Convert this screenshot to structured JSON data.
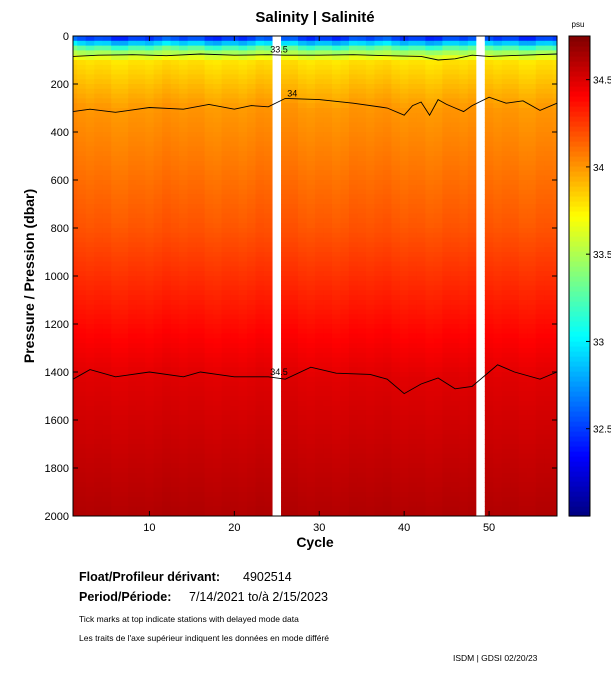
{
  "chart_data": {
    "type": "heatmap",
    "title": "Salinity | Salinité",
    "xlabel": "Cycle",
    "ylabel": "Pressure / Pression (dbar)",
    "x_range": [
      1,
      58
    ],
    "y_range": [
      0,
      2000
    ],
    "y_inverted": true,
    "x_ticks": [
      10,
      20,
      30,
      40,
      50
    ],
    "y_ticks": [
      0,
      200,
      400,
      600,
      800,
      1000,
      1200,
      1400,
      1600,
      1800,
      2000
    ],
    "data_gaps_cycles": [
      25,
      49
    ],
    "colorbar": {
      "unit": "psu",
      "range": [
        32.0,
        34.75
      ],
      "ticks": [
        32.5,
        33,
        33.5,
        34,
        34.5
      ],
      "tick_labels": [
        "32.5",
        "33",
        "33.5",
        "34",
        "34.5"
      ],
      "colormap": "jet"
    },
    "contours": [
      {
        "level": 33.5,
        "label": "33.5",
        "x": [
          1,
          4,
          8,
          12,
          16,
          20,
          24,
          26,
          30,
          34,
          38,
          42,
          44,
          46,
          48,
          50,
          54,
          58
        ],
        "y": [
          85,
          80,
          78,
          82,
          75,
          80,
          78,
          80,
          80,
          78,
          82,
          85,
          100,
          95,
          80,
          85,
          80,
          75
        ]
      },
      {
        "level": 34,
        "label": "34",
        "x": [
          1,
          3,
          6,
          10,
          14,
          17,
          20,
          22,
          24,
          26,
          30,
          34,
          38,
          40,
          41,
          42,
          43,
          44,
          45,
          46,
          47,
          48,
          50,
          52,
          54,
          56,
          58
        ],
        "y": [
          315,
          305,
          318,
          298,
          305,
          285,
          305,
          290,
          295,
          260,
          265,
          280,
          300,
          330,
          290,
          275,
          330,
          265,
          285,
          300,
          315,
          290,
          255,
          280,
          270,
          310,
          280
        ]
      },
      {
        "level": 34.5,
        "label": "34.5",
        "x": [
          1,
          3,
          6,
          10,
          14,
          16,
          18,
          20,
          24,
          26,
          29,
          32,
          36,
          38,
          40,
          42,
          44,
          46,
          48,
          50,
          51,
          53,
          56,
          58
        ],
        "y": [
          1430,
          1390,
          1420,
          1400,
          1420,
          1400,
          1410,
          1420,
          1420,
          1430,
          1380,
          1405,
          1410,
          1430,
          1490,
          1450,
          1425,
          1470,
          1460,
          1400,
          1370,
          1400,
          1430,
          1400
        ]
      }
    ],
    "legend": "colorbar-right"
  },
  "float": {
    "label": "Float/Profileur dérivant:",
    "id": "4902514"
  },
  "period": {
    "label": "Period/Période:",
    "value": "7/14/2021  to/à  2/15/2023"
  },
  "notes": {
    "en": "Tick marks at top indicate stations with delayed mode data",
    "fr": "Les traits de l'axe supérieur indiquent les données en mode différé"
  },
  "footer": "ISDM | GDSI  02/20/23",
  "colors": {
    "deep": "#8b0000",
    "contour": "#000000"
  }
}
